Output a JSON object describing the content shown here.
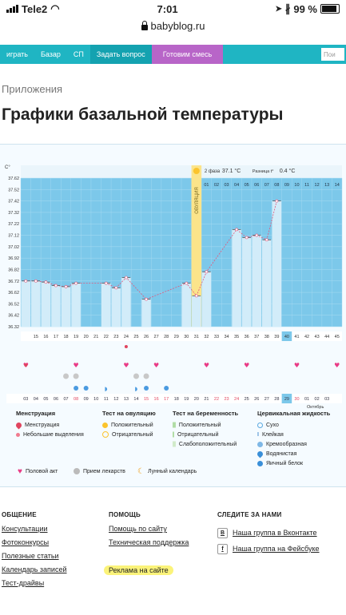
{
  "status": {
    "carrier": "Tele2",
    "time": "7:01",
    "battery": "99 %"
  },
  "browser": {
    "url": "babyblog.ru"
  },
  "nav": {
    "items": [
      "играть",
      "Базар",
      "СП"
    ],
    "ask": "Задать вопрос",
    "mix": "Готовим смесь",
    "search_placeholder": "Пои"
  },
  "breadcrumb": "Приложения",
  "page_title": "Графики базальной температуры",
  "chart_data": {
    "type": "line",
    "ylabel": "C°",
    "y_ticks": [
      "37.62",
      "37.52",
      "37.42",
      "37.32",
      "37.22",
      "37.12",
      "37.02",
      "36.92",
      "36.82",
      "36.72",
      "36.62",
      "36.52",
      "36.42",
      "36.32"
    ],
    "ylim": [
      36.32,
      37.62
    ],
    "x": [
      14,
      15,
      16,
      17,
      18,
      19,
      20,
      21,
      22,
      23,
      24,
      25,
      26,
      27,
      28,
      29,
      30,
      31,
      32,
      33,
      34,
      35,
      36,
      37,
      38,
      39,
      40,
      41,
      42,
      43,
      44,
      45
    ],
    "cycle_days_label": [
      "15",
      "16",
      "17",
      "18",
      "19",
      "20",
      "21",
      "22",
      "23",
      "24",
      "25",
      "26",
      "27",
      "28",
      "29",
      "30",
      "31",
      "32",
      "33",
      "34",
      "35",
      "36",
      "37",
      "38",
      "39",
      "40",
      "41",
      "42",
      "43",
      "44",
      "45"
    ],
    "values": [
      36.72,
      36.72,
      36.71,
      36.68,
      36.67,
      36.7,
      null,
      null,
      36.7,
      36.66,
      36.75,
      null,
      36.56,
      null,
      null,
      null,
      36.7,
      36.59,
      36.8,
      null,
      null,
      37.17,
      37.1,
      37.12,
      37.08,
      37.42,
      null,
      null,
      null,
      null,
      null,
      null
    ],
    "phase2_label": "2 фаза",
    "phase2_value": "37.1 °C",
    "diff_label": "Разница t°",
    "diff_value": "0.4 °C",
    "ovulation_label": "ОВУЛЯЦИЯ",
    "phase2_days": [
      "01",
      "02",
      "03",
      "04",
      "05",
      "06",
      "07",
      "08",
      "09",
      "10",
      "11",
      "12",
      "13",
      "14"
    ],
    "dates": [
      "03",
      "04",
      "05",
      "06",
      "07",
      "08",
      "09",
      "10",
      "11",
      "12",
      "13",
      "14",
      "15",
      "16",
      "17",
      "18",
      "19",
      "20",
      "21",
      "22",
      "23",
      "24",
      "25",
      "26",
      "27",
      "28",
      "29",
      "30",
      "01",
      "02",
      "03"
    ],
    "month_label": "Октябрь",
    "highlight_day": "40",
    "highlight_date": "29"
  },
  "legend": {
    "menstruation": {
      "title": "Менструация",
      "items": [
        "Менструация",
        "Небольшие выделения"
      ]
    },
    "ovulation_test": {
      "title": "Тест на овуляцию",
      "items": [
        "Положительный",
        "Отрицательный"
      ]
    },
    "pregnancy_test": {
      "title": "Тест на беременность",
      "items": [
        "Положительный",
        "Отрицательный",
        "Слабоположительный"
      ]
    },
    "cervical": {
      "title": "Цервикальная жидкость",
      "items": [
        "Сухо",
        "Клейкая",
        "Кремообразная",
        "Водянистая",
        "Яичный белок"
      ]
    },
    "other": [
      "Половой акт",
      "Прием лекарств",
      "Лунный календарь"
    ]
  },
  "footer": {
    "general": {
      "title": "ОБЩЕНИЕ",
      "links": [
        "Консультации",
        "Фотоконкурсы",
        "Полезные статьи",
        "Календарь записей",
        "Тест-драйвы"
      ]
    },
    "help": {
      "title": "ПОМОЩЬ",
      "links": [
        "Помощь по сайту",
        "Техническая поддержка",
        "Реклама на сайте"
      ]
    },
    "follow": {
      "title": "СЛЕДИТЕ ЗА НАМИ",
      "vk": "Наша группа в Вконтакте",
      "fb": "Наша группа на Фейсбуке",
      "vk_icon": "B",
      "fb_icon": "f"
    }
  },
  "colors": {
    "accent": "#1fb5c3",
    "purple": "#b865c8",
    "chart_bar": "#bde3f5",
    "line": "#e2577c",
    "ovulation": "#fbd25a"
  }
}
